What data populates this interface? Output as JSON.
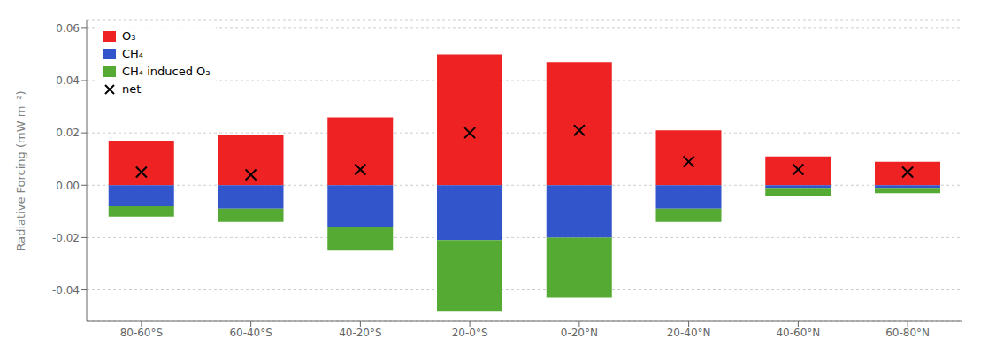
{
  "chart_data": {
    "type": "bar",
    "categories": [
      "80-60°S",
      "60-40°S",
      "40-20°S",
      "20-0°S",
      "0-20°N",
      "20-40°N",
      "40-60°N",
      "60-80°N"
    ],
    "series": [
      {
        "name": "O₃",
        "type": "bar",
        "color": "#ee2222",
        "values": [
          0.017,
          0.019,
          0.026,
          0.05,
          0.047,
          0.021,
          0.011,
          0.009
        ]
      },
      {
        "name": "CH₄",
        "type": "bar",
        "color": "#3355cc",
        "values": [
          -0.008,
          -0.009,
          -0.016,
          -0.021,
          -0.02,
          -0.009,
          -0.001,
          -0.001
        ]
      },
      {
        "name": "CH₄ induced O₃",
        "type": "bar",
        "color": "#55aa33",
        "values": [
          -0.004,
          -0.005,
          -0.009,
          -0.027,
          -0.023,
          -0.005,
          -0.003,
          -0.002
        ]
      },
      {
        "name": "net",
        "type": "scatter",
        "marker": "x",
        "color": "black",
        "values": [
          0.005,
          0.004,
          0.006,
          0.02,
          0.021,
          0.009,
          0.006,
          0.005
        ]
      }
    ],
    "stacked": true,
    "ylabel": "Radiative Forcing (mW m⁻²)",
    "ylim": [
      -0.052,
      0.063
    ],
    "yticks": [
      -0.04,
      -0.02,
      {
        "value": 0,
        "label": "0.00"
      },
      0.02,
      0.04,
      0.06
    ],
    "grid": true,
    "legend": "upper left"
  }
}
